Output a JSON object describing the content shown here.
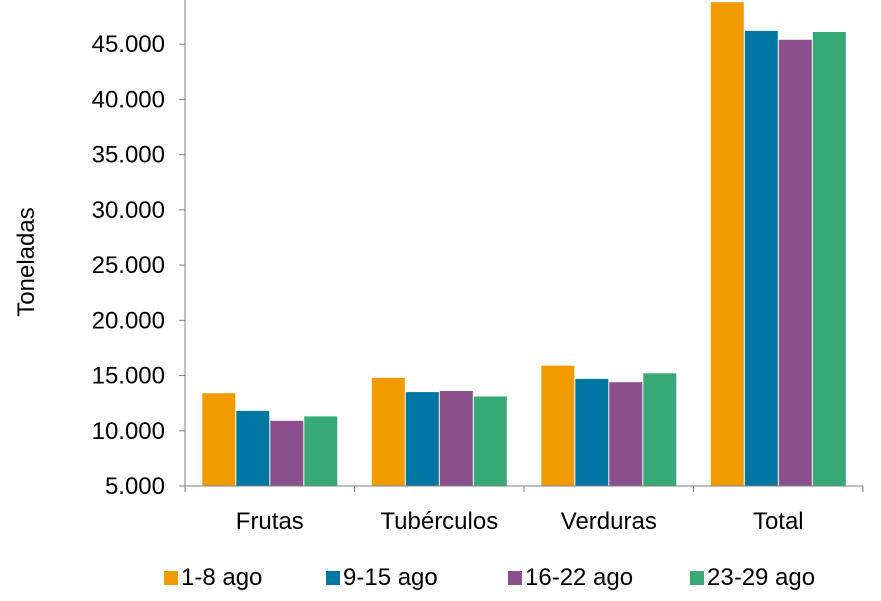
{
  "chart_data": {
    "type": "bar",
    "title": "",
    "xlabel": "",
    "ylabel": "Toneladas",
    "ylim": [
      5000,
      49000
    ],
    "yticks": [
      5000,
      10000,
      15000,
      20000,
      25000,
      30000,
      35000,
      40000,
      45000
    ],
    "ytick_labels": [
      "5.000",
      "10.000",
      "15.000",
      "20.000",
      "25.000",
      "30.000",
      "35.000",
      "40.000",
      "45.000"
    ],
    "categories": [
      "Frutas",
      "Tubérculos",
      "Verduras",
      "Total"
    ],
    "series": [
      {
        "name": "1-8 ago",
        "color": "#F29B00",
        "values": [
          13400,
          14800,
          15900,
          48800
        ]
      },
      {
        "name": "9-15 ago",
        "color": "#0077A3",
        "values": [
          11800,
          13500,
          14700,
          46200
        ]
      },
      {
        "name": "16-22 ago",
        "color": "#8B4F8C",
        "values": [
          10900,
          13600,
          14400,
          45400
        ]
      },
      {
        "name": "23-29 ago",
        "color": "#38AA78",
        "values": [
          11300,
          13100,
          15200,
          46100
        ]
      }
    ],
    "grid": false,
    "legend_position": "bottom"
  }
}
